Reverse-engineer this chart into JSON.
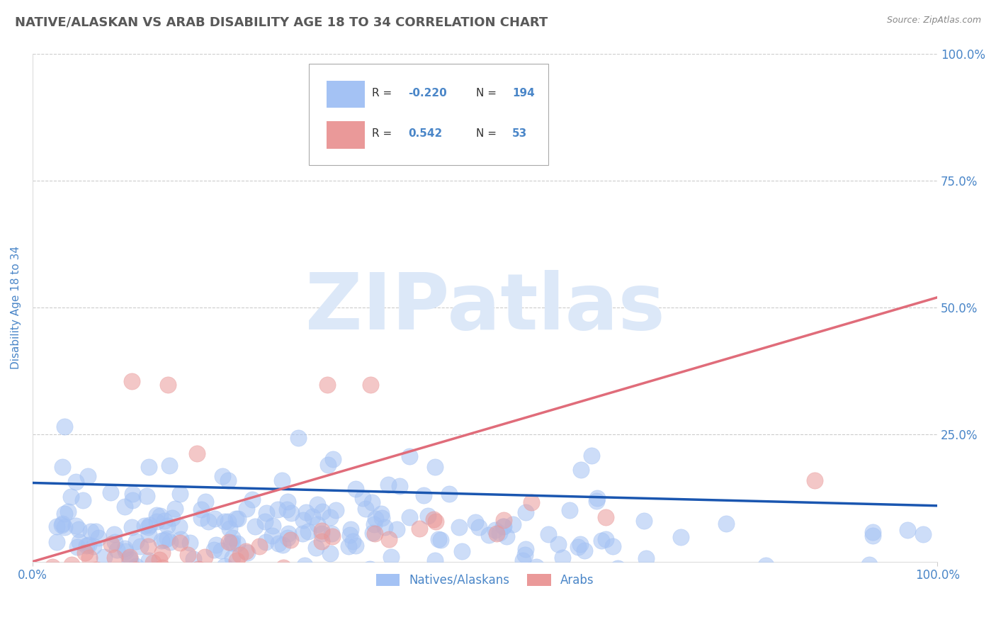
{
  "title": "NATIVE/ALASKAN VS ARAB DISABILITY AGE 18 TO 34 CORRELATION CHART",
  "source_text": "Source: ZipAtlas.com",
  "ylabel": "Disability Age 18 to 34",
  "watermark": "ZIPatlas",
  "blue_R": -0.22,
  "blue_N": 194,
  "pink_R": 0.542,
  "pink_N": 53,
  "blue_color": "#a4c2f4",
  "pink_color": "#ea9999",
  "blue_line_color": "#1a56b0",
  "pink_line_color": "#e06c7a",
  "title_color": "#595959",
  "axis_label_color": "#4a86c8",
  "background_color": "#ffffff",
  "grid_color": "#cccccc",
  "watermark_color": "#dce8f8",
  "blue_line_intercept": 0.155,
  "blue_line_slope": -0.045,
  "pink_line_intercept": 0.0,
  "pink_line_slope": 0.52,
  "figsize": [
    14.06,
    8.92
  ],
  "dpi": 100
}
